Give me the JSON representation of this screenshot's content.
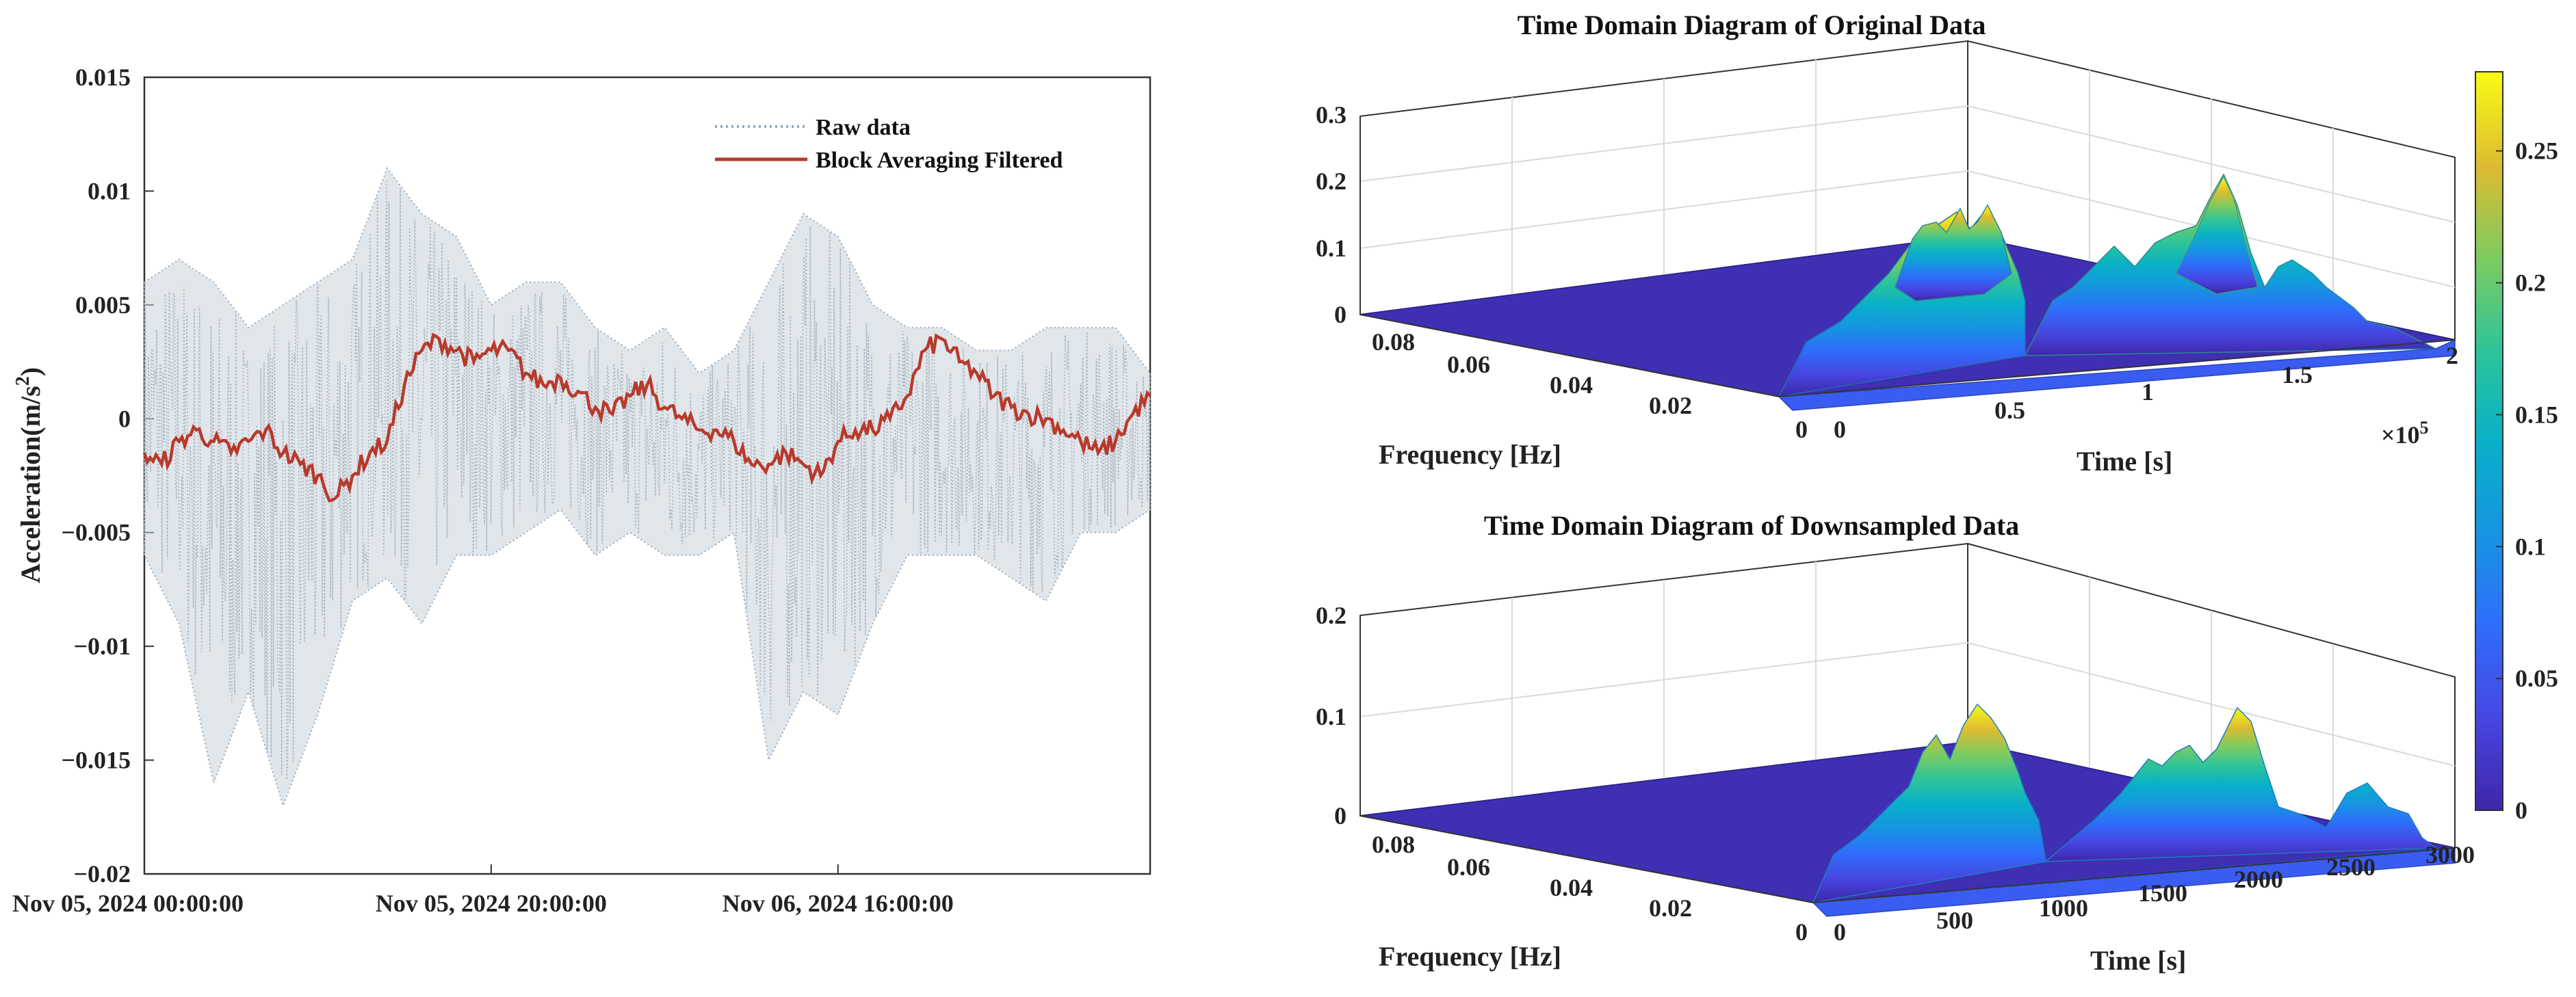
{
  "chart_data": [
    {
      "type": "line",
      "title": "",
      "xlabel": "",
      "ylabel": "Acceleration(m/s",
      "ylabel_sup": "2",
      "ylabel_close": ")",
      "ylim": [
        -0.02,
        0.015
      ],
      "yticks": [
        0.015,
        0.01,
        0.005,
        0,
        -0.005,
        -0.01,
        -0.015,
        -0.02
      ],
      "ytick_labels": [
        "0.015",
        "0.01",
        "0.005",
        "0",
        "−0.005",
        "−0.01",
        "−0.015",
        "−0.02"
      ],
      "xlim_hours": [
        0,
        58
      ],
      "xtick_hours": [
        0,
        20,
        40
      ],
      "xtick_labels": [
        "Nov 05, 2024 00:00:00",
        "Nov 05, 2024 20:00:00",
        "Nov 06, 2024 16:00:00"
      ],
      "legend_position": "top-right",
      "series": [
        {
          "name": "Raw data",
          "style": "dotted",
          "color": "#9aa8b5",
          "x_hours": [
            0,
            2,
            4,
            6,
            8,
            10,
            12,
            14,
            16,
            18,
            20,
            22,
            24,
            26,
            28,
            30,
            32,
            34,
            36,
            38,
            40,
            42,
            44,
            46,
            48,
            50,
            52,
            54,
            56,
            58
          ],
          "upper": [
            0.006,
            0.007,
            0.006,
            0.004,
            0.005,
            0.006,
            0.007,
            0.011,
            0.009,
            0.008,
            0.005,
            0.006,
            0.006,
            0.004,
            0.003,
            0.004,
            0.002,
            0.003,
            0.006,
            0.009,
            0.008,
            0.005,
            0.004,
            0.004,
            0.003,
            0.003,
            0.004,
            0.004,
            0.004,
            0.002
          ],
          "lower": [
            -0.006,
            -0.009,
            -0.016,
            -0.012,
            -0.017,
            -0.013,
            -0.008,
            -0.007,
            -0.009,
            -0.006,
            -0.006,
            -0.005,
            -0.004,
            -0.006,
            -0.005,
            -0.006,
            -0.006,
            -0.005,
            -0.015,
            -0.012,
            -0.013,
            -0.009,
            -0.006,
            -0.006,
            -0.006,
            -0.007,
            -0.008,
            -0.005,
            -0.005,
            -0.004
          ]
        },
        {
          "name": "Block Averaging Filtered",
          "style": "solid",
          "color": "#b83a2b",
          "x_hours": [
            0,
            1,
            2,
            3,
            4,
            5,
            6,
            7,
            8,
            9,
            10,
            11,
            12,
            13,
            14,
            15,
            16,
            17,
            18,
            19,
            20,
            21,
            22,
            23,
            24,
            25,
            26,
            27,
            28,
            29,
            30,
            31,
            32,
            33,
            34,
            35,
            36,
            37,
            38,
            39,
            40,
            41,
            42,
            43,
            44,
            45,
            46,
            47,
            48,
            49,
            50,
            51,
            52,
            53,
            54,
            55,
            56,
            57,
            58
          ],
          "values": [
            -0.0015,
            -0.002,
            -0.001,
            -0.0005,
            -0.001,
            -0.0015,
            -0.001,
            -0.0005,
            -0.0015,
            -0.002,
            -0.0025,
            -0.0035,
            -0.0025,
            -0.0015,
            -0.001,
            0.0015,
            0.003,
            0.0035,
            0.003,
            0.0025,
            0.003,
            0.003,
            0.002,
            0.0015,
            0.0018,
            0.0012,
            0.0005,
            0.0002,
            0.001,
            0.0015,
            0.0005,
            0.0,
            -0.0005,
            -0.0005,
            -0.001,
            -0.002,
            -0.002,
            -0.0015,
            -0.002,
            -0.0025,
            -0.001,
            -0.0005,
            -0.0005,
            0.0,
            0.001,
            0.003,
            0.0035,
            0.0025,
            0.002,
            0.001,
            0.0005,
            0.0002,
            0.0,
            -0.0005,
            -0.001,
            -0.0015,
            -0.001,
            0.0002,
            0.001
          ]
        }
      ]
    },
    {
      "type": "surface",
      "title": "Time Domain Diagram of Original Data",
      "xlabel": "Frequency [Hz]",
      "ylabel": "Time [s]",
      "zlim": [
        0,
        0.3
      ],
      "zticks": [
        "0",
        "0.1",
        "0.2",
        "0.3"
      ],
      "freq_ticks": [
        "0.08",
        "0.06",
        "0.04",
        "0.02",
        "0"
      ],
      "time_ticks": [
        "0",
        "0.5",
        "1",
        "1.5",
        "2"
      ],
      "time_multiplier": "×10",
      "time_multiplier_exp": "5",
      "peak_value": 0.27
    },
    {
      "type": "surface",
      "title": "Time Domain Diagram of Downsampled Data",
      "xlabel": "Frequency [Hz]",
      "ylabel": "Time [s]",
      "zlim": [
        0,
        0.2
      ],
      "zticks": [
        "0",
        "0.1",
        "0.2"
      ],
      "freq_ticks": [
        "0.08",
        "0.06",
        "0.04",
        "0.02",
        "0"
      ],
      "time_ticks": [
        "0",
        "500",
        "1000",
        "1500",
        "2000",
        "2500",
        "3000"
      ],
      "peak_value": 0.13
    },
    {
      "type": "colorbar",
      "colormap": "parula",
      "ticks": [
        "0",
        "0.05",
        "0.1",
        "0.15",
        "0.2",
        "0.25"
      ],
      "range": [
        0,
        0.28
      ]
    }
  ]
}
